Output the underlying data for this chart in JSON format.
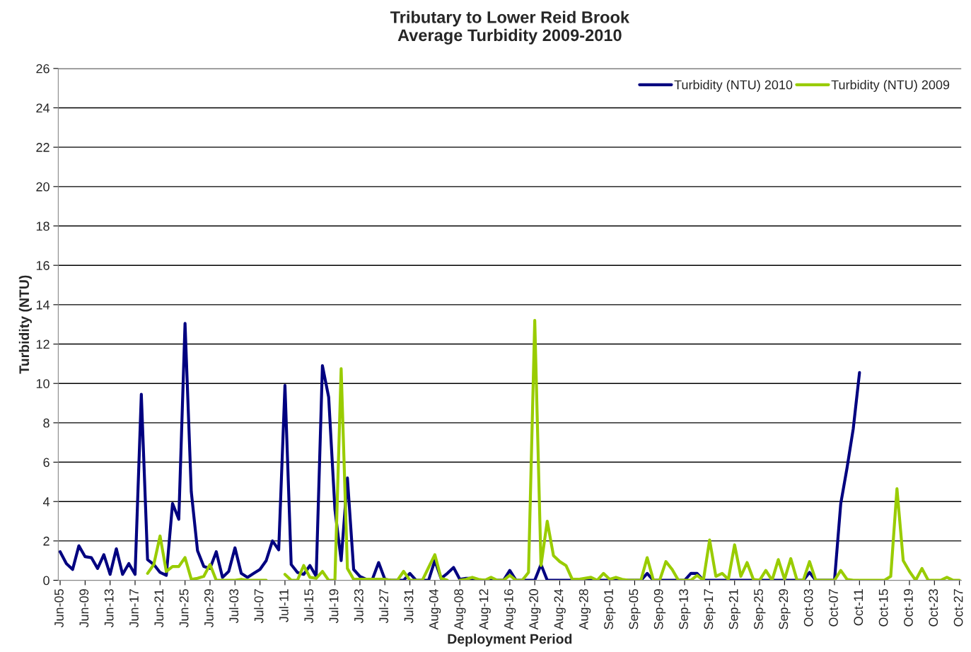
{
  "chart_data": {
    "type": "line",
    "title": "Tributary to Lower Reid Brook\nAverage Turbidity 2009-2010",
    "xlabel": "Deployment Period",
    "ylabel": "Turbidity (NTU)",
    "categories": [
      "Jun-05",
      null,
      null,
      null,
      "Jun-09",
      null,
      null,
      null,
      "Jun-13",
      null,
      null,
      null,
      "Jun-17",
      null,
      null,
      null,
      "Jun-21",
      null,
      null,
      null,
      "Jun-25",
      null,
      null,
      null,
      "Jun-29",
      null,
      null,
      null,
      "Jul-03",
      null,
      null,
      null,
      "Jul-07",
      null,
      null,
      null,
      "Jul-11",
      null,
      null,
      null,
      "Jul-15",
      null,
      null,
      null,
      "Jul-19",
      null,
      null,
      null,
      "Jul-23",
      null,
      null,
      null,
      "Jul-27",
      null,
      null,
      null,
      "Jul-31",
      null,
      null,
      null,
      "Aug-04",
      null,
      null,
      null,
      "Aug-08",
      null,
      null,
      null,
      "Aug-12",
      null,
      null,
      null,
      "Aug-16",
      null,
      null,
      null,
      "Aug-20",
      null,
      null,
      null,
      "Aug-24",
      null,
      null,
      null,
      "Aug-28",
      null,
      null,
      null,
      "Sep-01",
      null,
      null,
      null,
      "Sep-05",
      null,
      null,
      null,
      "Sep-09",
      null,
      null,
      null,
      "Sep-13",
      null,
      null,
      null,
      "Sep-17",
      null,
      null,
      null,
      "Sep-21",
      null,
      null,
      null,
      "Sep-25",
      null,
      null,
      null,
      "Sep-29",
      null,
      null,
      null,
      "Oct-03",
      null,
      null,
      null,
      "Oct-07",
      null,
      null,
      null,
      "Oct-11",
      null,
      null,
      null,
      "Oct-15",
      null,
      null,
      null,
      "Oct-19",
      null,
      null,
      null,
      "Oct-23",
      null,
      null,
      null,
      "Oct-27"
    ],
    "series": [
      {
        "name": "Turbidity (NTU) 2010",
        "color": "#000080",
        "values": [
          1.45,
          0.85,
          0.55,
          1.75,
          1.2,
          1.15,
          0.6,
          1.3,
          0.3,
          1.6,
          0.3,
          0.85,
          0.3,
          9.45,
          1.05,
          0.8,
          0.4,
          0.25,
          3.9,
          3.1,
          13.05,
          4.5,
          1.5,
          0.7,
          0.6,
          1.45,
          0.15,
          0.45,
          1.65,
          0.35,
          0.15,
          0.35,
          0.55,
          1.0,
          2.0,
          1.55,
          9.9,
          0.8,
          0.4,
          0.3,
          0.75,
          0.2,
          10.9,
          9.3,
          3.6,
          1.0,
          5.2,
          0.55,
          0.2,
          0.05,
          0.05,
          0.9,
          0.05,
          0,
          0,
          0,
          0.35,
          0,
          0,
          0,
          1.0,
          0.1,
          0.35,
          0.65,
          0.05,
          0.1,
          0.1,
          0,
          0,
          0,
          0,
          0,
          0.5,
          0,
          0,
          0,
          0,
          0.8,
          0,
          0,
          0,
          0,
          0,
          0,
          0,
          0,
          0,
          0,
          0,
          0,
          0,
          0,
          0,
          0,
          0.35,
          0,
          0,
          0,
          0,
          0,
          0,
          0.35,
          0.35,
          0,
          0,
          0,
          0,
          0,
          0,
          0,
          0,
          0,
          0,
          0,
          0,
          0,
          0,
          0,
          0,
          0,
          0.4,
          0,
          0,
          0,
          0,
          3.9,
          5.7,
          7.7,
          10.55,
          null,
          null,
          null,
          null,
          null,
          null,
          null,
          null,
          null,
          null,
          null,
          null,
          null,
          null,
          null,
          null
        ]
      },
      {
        "name": "Turbidity (NTU) 2009",
        "color": "#99cc00",
        "values": [
          null,
          null,
          null,
          null,
          null,
          null,
          null,
          null,
          null,
          null,
          null,
          null,
          null,
          null,
          0.35,
          0.8,
          2.25,
          0.45,
          0.7,
          0.7,
          1.15,
          0.05,
          0.1,
          0.2,
          0.8,
          0,
          0,
          0,
          0,
          0.05,
          0,
          0,
          0,
          0,
          null,
          null,
          0.3,
          0,
          0,
          0.75,
          0.15,
          0.1,
          0.45,
          0,
          0,
          10.75,
          0.6,
          0.05,
          0.05,
          0.05,
          0.05,
          0.05,
          0.05,
          0,
          0,
          0.45,
          0,
          0,
          0,
          0.65,
          1.3,
          0.1,
          0,
          null,
          0,
          0.05,
          0.15,
          0.05,
          0,
          0.15,
          0,
          0,
          0.25,
          0,
          0,
          0.4,
          13.2,
          0.75,
          3.0,
          1.25,
          0.95,
          0.75,
          0.05,
          0.05,
          0.1,
          0.15,
          0,
          0.35,
          0.05,
          0.15,
          0.05,
          0,
          0,
          0,
          1.15,
          0,
          0,
          0.95,
          0.55,
          0,
          0,
          0,
          0.25,
          0,
          2.05,
          0.2,
          0.35,
          0.05,
          1.8,
          0.2,
          0.9,
          0.05,
          0,
          0.5,
          0,
          1.05,
          0.05,
          1.1,
          0,
          0,
          0.95,
          0,
          0,
          0,
          0,
          0.5,
          0.05,
          0,
          0,
          0,
          0,
          0,
          0,
          0.2,
          4.65,
          1.0,
          0.45,
          0,
          0.6,
          0,
          0,
          0,
          0.15,
          0,
          0
        ]
      }
    ],
    "ylim": [
      0,
      26
    ],
    "yticks": [
      0,
      2,
      4,
      6,
      8,
      10,
      12,
      14,
      16,
      18,
      20,
      22,
      24,
      26
    ],
    "grid": "y",
    "legend": "top right",
    "marker": "none",
    "line_style": "solid"
  }
}
